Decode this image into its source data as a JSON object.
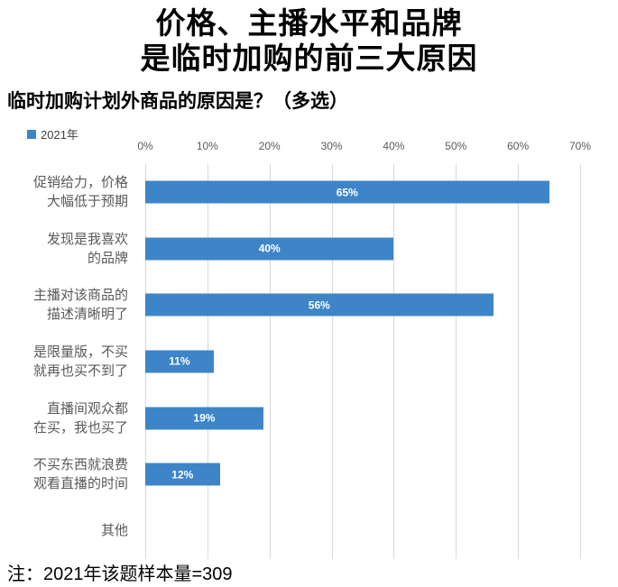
{
  "title": {
    "line1": "价格、主播水平和品牌",
    "line2": "是临时加购的前三大原因"
  },
  "subtitle": "临时加购计划外商品的原因是？（多选）",
  "legend": {
    "label": "2021年"
  },
  "note": "注：2021年该题样本量=309",
  "chart_data": {
    "type": "bar",
    "orientation": "horizontal",
    "title": "临时加购计划外商品的原因是？（多选）",
    "series_name": "2021年",
    "categories": [
      "促销给力，价格\n大幅低于预期",
      "发现是我喜欢\n的品牌",
      "主播对该商品的\n描述清晰明了",
      "是限量版，不买\n就再也买不到了",
      "直播间观众都\n在买，我也买了",
      "不买东西就浪费\n观看直播的时间",
      "其他"
    ],
    "values": [
      65,
      40,
      56,
      11,
      19,
      12,
      0
    ],
    "data_labels": [
      "65%",
      "40%",
      "56%",
      "11%",
      "19%",
      "12%",
      ""
    ],
    "axis": {
      "position": "top",
      "min": 0,
      "max": 70,
      "ticks": [
        "0%",
        "10%",
        "20%",
        "30%",
        "40%",
        "50%",
        "60%",
        "70%"
      ]
    },
    "grid": true,
    "legend_position": "top-left",
    "colors": {
      "bar": "#3D85C8",
      "gridline": "#D9D9D9",
      "axis_text": "#595959",
      "category_text": "#595959",
      "data_label_text": "#FFFFFF"
    }
  }
}
